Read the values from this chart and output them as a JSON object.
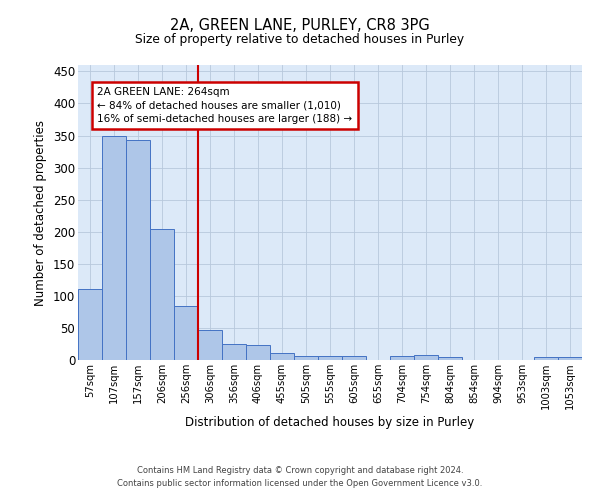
{
  "title": "2A, GREEN LANE, PURLEY, CR8 3PG",
  "subtitle": "Size of property relative to detached houses in Purley",
  "xlabel": "Distribution of detached houses by size in Purley",
  "ylabel": "Number of detached properties",
  "footnote1": "Contains HM Land Registry data © Crown copyright and database right 2024.",
  "footnote2": "Contains public sector information licensed under the Open Government Licence v3.0.",
  "annotation_line1": "2A GREEN LANE: 264sqm",
  "annotation_line2": "← 84% of detached houses are smaller (1,010)",
  "annotation_line3": "16% of semi-detached houses are larger (188) →",
  "bar_labels": [
    "57sqm",
    "107sqm",
    "157sqm",
    "206sqm",
    "256sqm",
    "306sqm",
    "356sqm",
    "406sqm",
    "455sqm",
    "505sqm",
    "555sqm",
    "605sqm",
    "655sqm",
    "704sqm",
    "754sqm",
    "804sqm",
    "854sqm",
    "904sqm",
    "953sqm",
    "1003sqm",
    "1053sqm"
  ],
  "bar_values": [
    110,
    350,
    343,
    204,
    84,
    47,
    25,
    24,
    11,
    7,
    7,
    7,
    0,
    7,
    8,
    4,
    0,
    0,
    0,
    5,
    4
  ],
  "bar_color": "#aec6e8",
  "bar_edge_color": "#4472c4",
  "ref_line_x": 4.5,
  "ref_line_color": "#cc0000",
  "ylim": [
    0,
    460
  ],
  "yticks": [
    0,
    50,
    100,
    150,
    200,
    250,
    300,
    350,
    400,
    450
  ],
  "bg_color": "#dce9f8",
  "grid_color": "#b8c8dc",
  "annotation_box_color": "#cc0000",
  "figsize": [
    6.0,
    5.0
  ],
  "dpi": 100
}
